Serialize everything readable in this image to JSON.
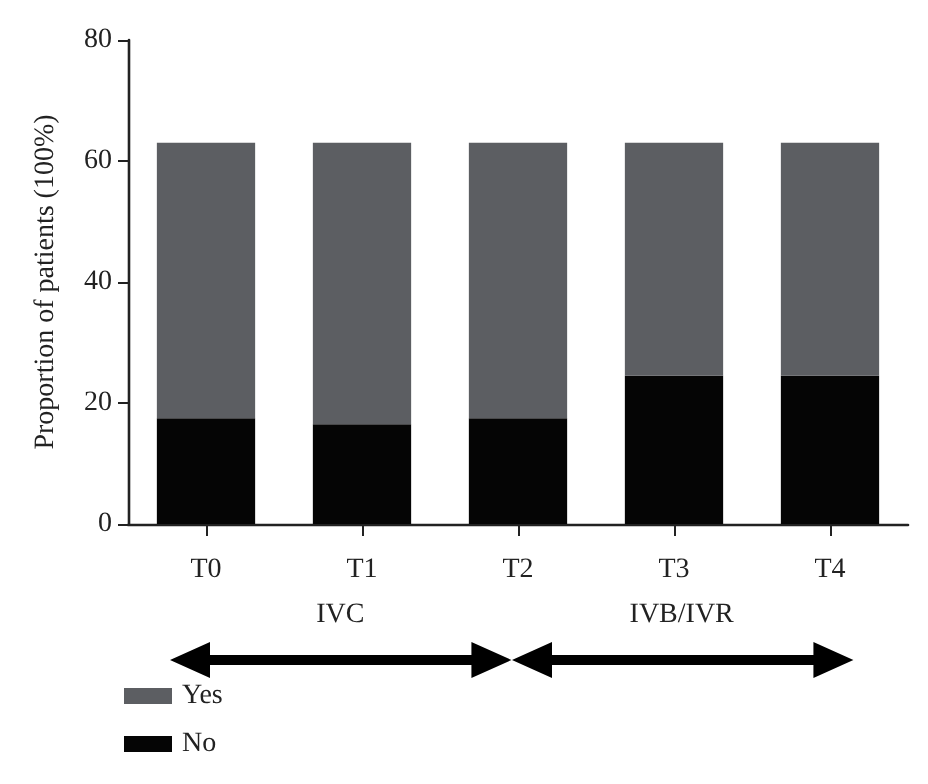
{
  "chart_data": {
    "type": "bar",
    "stacked": true,
    "ylabel": "Proportion of patients (100%)",
    "categories": [
      "T0",
      "T1",
      "T2",
      "T3",
      "T4"
    ],
    "series": [
      {
        "name": "No",
        "color": "#050505",
        "values": [
          17.5,
          16.5,
          17.5,
          24.5,
          24.5
        ]
      },
      {
        "name": "Yes",
        "color": "#5c5e62",
        "values": [
          45.5,
          46.5,
          45.5,
          38.5,
          38.5
        ]
      }
    ],
    "ylim": [
      0,
      80
    ],
    "yticks": [
      0,
      20,
      40,
      60,
      80
    ],
    "grid": false,
    "legend": "bottom left",
    "annotations": [
      "IVC",
      "IVB/IVR"
    ]
  }
}
